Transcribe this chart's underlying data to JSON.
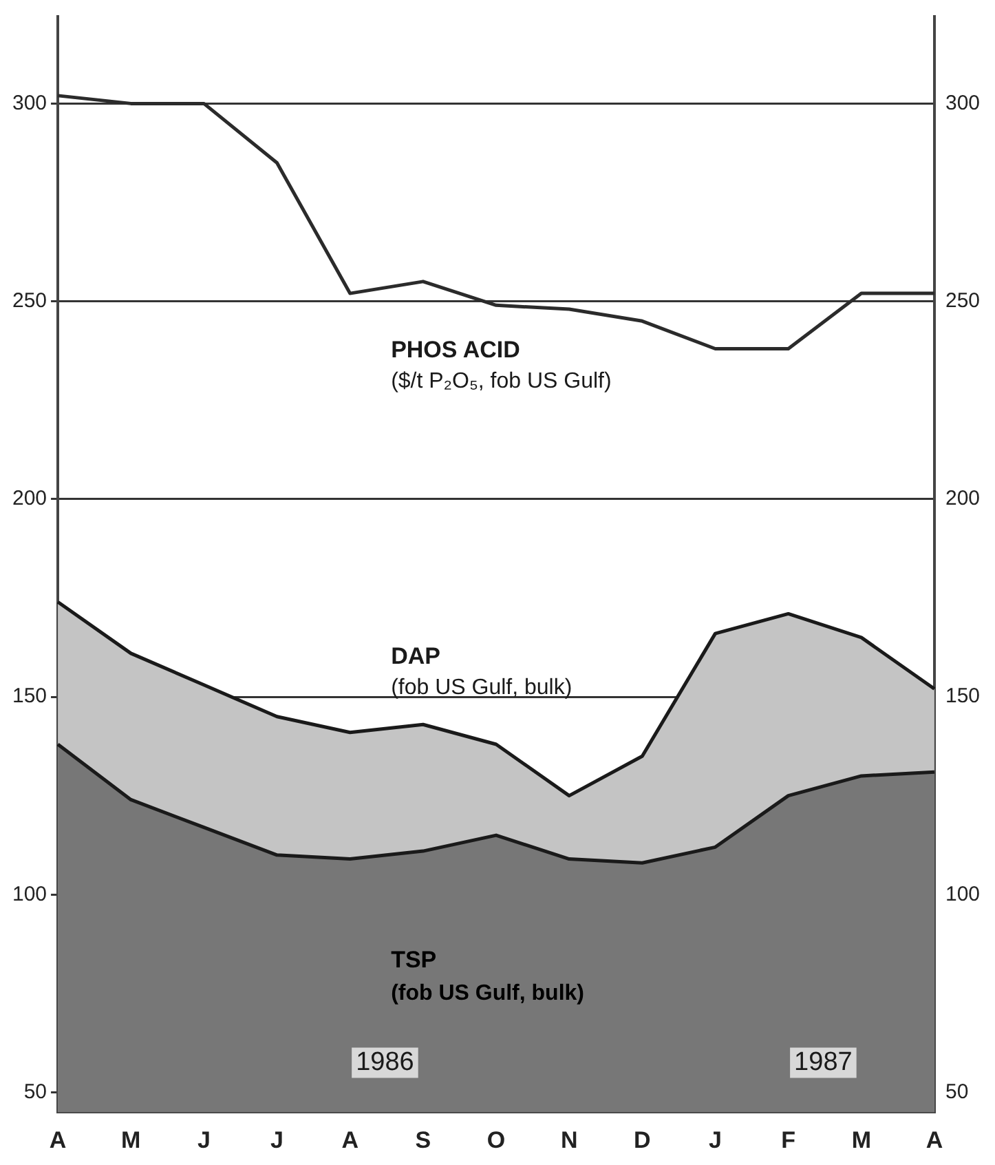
{
  "chart_data": {
    "type": "area",
    "categories": [
      "A",
      "M",
      "J",
      "J",
      "A",
      "S",
      "O",
      "N",
      "D",
      "J",
      "F",
      "M",
      "A"
    ],
    "series": [
      {
        "name": "PHOS ACID",
        "type": "line",
        "color": "#2b2b2b",
        "values": [
          302,
          300,
          300,
          285,
          252,
          255,
          249,
          248,
          245,
          238,
          238,
          252,
          252
        ]
      },
      {
        "name": "DAP",
        "color": "#c4c4c4",
        "values": [
          174,
          161,
          153,
          145,
          141,
          143,
          138,
          125,
          135,
          166,
          171,
          165,
          152
        ]
      },
      {
        "name": "TSP",
        "color": "#777777",
        "values": [
          138,
          124,
          117,
          110,
          109,
          111,
          115,
          109,
          108,
          112,
          125,
          130,
          131
        ]
      }
    ],
    "annotations": [
      "($/t P₂O₅, fob US Gulf)",
      "(fob US Gulf, bulk)",
      "(fob US Gulf, bulk)",
      "1986",
      "1987"
    ],
    "ylim": [
      45,
      322
    ],
    "yticks": [
      50,
      100,
      150,
      200,
      250,
      300
    ],
    "y2lim": [
      45,
      322
    ],
    "y2ticks": [
      50,
      100,
      150,
      200,
      250,
      300
    ],
    "grid": "y",
    "legend": false
  }
}
